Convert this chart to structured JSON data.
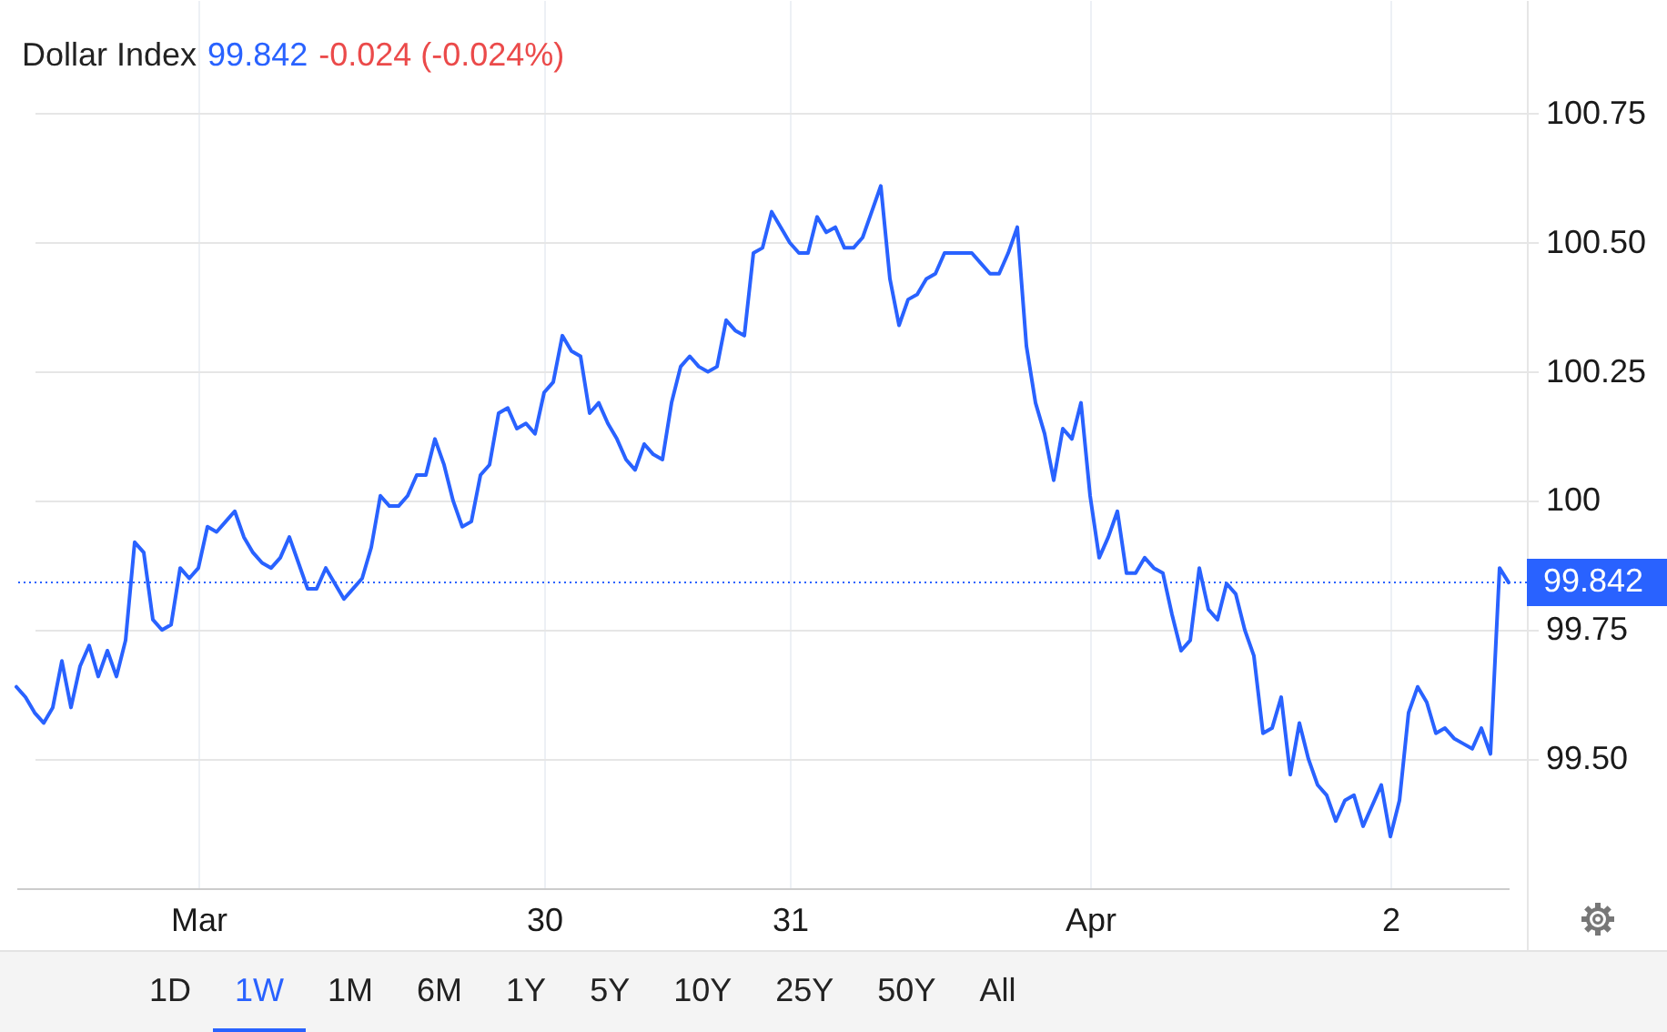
{
  "chart_data": {
    "type": "line",
    "title": "Dollar Index",
    "annotations": [
      "99.842",
      "-0.024 (-0.024%)",
      "1D",
      "1W",
      "1M",
      "6M",
      "1Y",
      "5Y",
      "10Y",
      "25Y",
      "50Y",
      "All"
    ],
    "categories": [
      null,
      null,
      null,
      null,
      null,
      null,
      null,
      null,
      null,
      null,
      null,
      null,
      null,
      null,
      null,
      null,
      null,
      null,
      null,
      null,
      "Mar",
      null,
      null,
      null,
      null,
      null,
      null,
      null,
      null,
      null,
      null,
      null,
      null,
      null,
      null,
      null,
      null,
      null,
      null,
      null,
      null,
      null,
      null,
      null,
      null,
      null,
      null,
      null,
      null,
      null,
      null,
      null,
      null,
      null,
      null,
      null,
      null,
      null,
      "30",
      null,
      null,
      null,
      null,
      null,
      null,
      null,
      null,
      null,
      null,
      null,
      null,
      null,
      null,
      null,
      null,
      null,
      null,
      null,
      null,
      null,
      null,
      null,
      null,
      null,
      null,
      "31",
      null,
      null,
      null,
      null,
      null,
      null,
      null,
      null,
      null,
      null,
      null,
      null,
      null,
      null,
      null,
      null,
      null,
      null,
      null,
      null,
      null,
      null,
      null,
      null,
      null,
      null,
      null,
      null,
      null,
      null,
      null,
      null,
      "Apr",
      null,
      null,
      null,
      null,
      null,
      null,
      null,
      null,
      null,
      null,
      null,
      null,
      null,
      null,
      null,
      null,
      null,
      null,
      null,
      null,
      null,
      null,
      null,
      null,
      null,
      null,
      null,
      null,
      null,
      null,
      null,
      null,
      "2",
      null,
      null,
      null,
      null,
      null,
      null,
      null,
      null,
      null,
      null,
      null,
      null,
      null
    ],
    "series": [
      {
        "color": "#2962ff",
        "values": [
          99.64,
          99.62,
          99.59,
          99.57,
          99.6,
          99.69,
          99.6,
          99.68,
          99.72,
          99.66,
          99.71,
          99.66,
          99.73,
          99.92,
          99.9,
          99.77,
          99.75,
          99.76,
          99.87,
          99.85,
          99.87,
          99.95,
          99.94,
          99.96,
          99.98,
          99.93,
          99.9,
          99.88,
          99.87,
          99.89,
          99.93,
          99.88,
          99.83,
          99.83,
          99.87,
          99.84,
          99.81,
          99.83,
          99.85,
          99.91,
          100.01,
          99.99,
          99.99,
          100.01,
          100.05,
          100.05,
          100.12,
          100.07,
          100.0,
          99.95,
          99.96,
          100.05,
          100.07,
          100.17,
          100.18,
          100.14,
          100.15,
          100.13,
          100.21,
          100.23,
          100.32,
          100.29,
          100.28,
          100.17,
          100.19,
          100.15,
          100.12,
          100.08,
          100.06,
          100.11,
          100.09,
          100.08,
          100.19,
          100.26,
          100.28,
          100.26,
          100.25,
          100.26,
          100.35,
          100.33,
          100.32,
          100.48,
          100.49,
          100.56,
          100.53,
          100.5,
          100.48,
          100.48,
          100.55,
          100.52,
          100.53,
          100.49,
          100.49,
          100.51,
          100.56,
          100.61,
          100.43,
          100.34,
          100.39,
          100.4,
          100.43,
          100.44,
          100.48,
          100.48,
          100.48,
          100.48,
          100.46,
          100.44,
          100.44,
          100.48,
          100.53,
          100.3,
          100.19,
          100.13,
          100.04,
          100.14,
          100.12,
          100.19,
          100.01,
          99.89,
          99.93,
          99.98,
          99.86,
          99.86,
          99.89,
          99.87,
          99.86,
          99.78,
          99.71,
          99.73,
          99.87,
          99.79,
          99.77,
          99.84,
          99.82,
          99.75,
          99.7,
          99.55,
          99.56,
          99.62,
          99.47,
          99.57,
          99.5,
          99.45,
          99.43,
          99.38,
          99.42,
          99.43,
          99.37,
          99.41,
          99.45,
          99.35,
          99.42,
          99.59,
          99.64,
          99.61,
          99.55,
          99.56,
          99.54,
          99.53,
          99.52,
          99.56,
          99.51,
          99.87,
          99.842
        ]
      }
    ],
    "ylim": [
      99.25,
      100.97
    ],
    "yticks": [
      {
        "value": 99.5,
        "label": "99.50"
      },
      99.75,
      100,
      100.25,
      {
        "value": 100.5,
        "label": "100.50"
      },
      100.75
    ],
    "ref_lines": [
      {
        "axis": "y",
        "value": 99.842,
        "label": "99.842",
        "color": "#2962ff",
        "line_style": "dotted"
      }
    ],
    "grid": true
  }
}
